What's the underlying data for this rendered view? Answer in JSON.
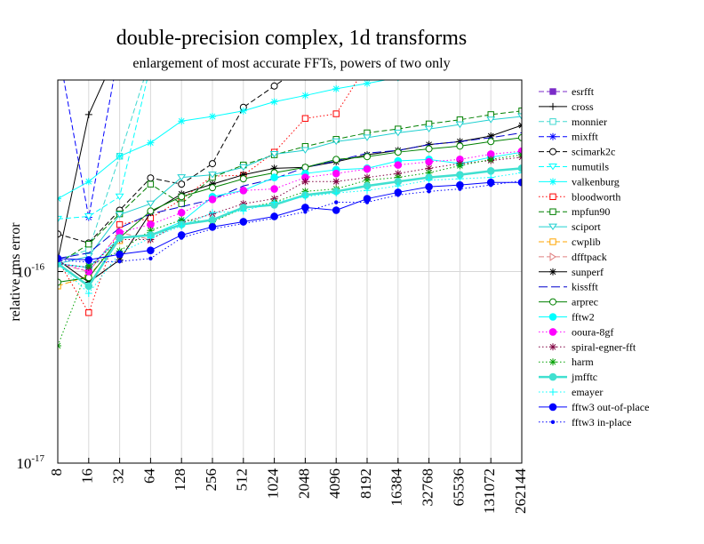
{
  "chart_data": {
    "type": "line",
    "title": "double-precision complex, 1d transforms",
    "subtitle": "enlargement of most accurate FFTs, powers of two only",
    "y_label": "relative rms error",
    "log_y": true,
    "grid": true,
    "categories": [
      "8",
      "16",
      "32",
      "64",
      "128",
      "256",
      "512",
      "1024",
      "2048",
      "4096",
      "8192",
      "16384",
      "32768",
      "65536",
      "131072",
      "262144"
    ],
    "ylim": [
      1e-17,
      1e-15
    ],
    "yticks": [
      {
        "value": 1e-17,
        "label": "10",
        "exp": "-17"
      },
      {
        "value": 1e-16,
        "label": "10",
        "exp": "-16"
      }
    ],
    "series": [
      {
        "name": "esrfft",
        "color": "#7b2bc8",
        "style": "dashed",
        "marker": "square-filled",
        "values": [
          null,
          null,
          null,
          null,
          null,
          null,
          null,
          null,
          null,
          null,
          null,
          null,
          null,
          null,
          null,
          null
        ]
      },
      {
        "name": "cross",
        "color": "#000000",
        "style": "solid",
        "marker": "plus",
        "values": [
          1.15e-16,
          6.6e-16,
          1.5e-15,
          null,
          null,
          null,
          null,
          null,
          null,
          null,
          null,
          null,
          null,
          null,
          null,
          null
        ]
      },
      {
        "name": "monnier",
        "color": "#40d8d0",
        "style": "dashed",
        "marker": "square",
        "values": [
          1.15e-16,
          1.3e-16,
          4e-16,
          1.3e-15,
          null,
          null,
          null,
          null,
          null,
          null,
          null,
          null,
          null,
          null,
          null,
          null
        ]
      },
      {
        "name": "mixfft",
        "color": "#0000ff",
        "style": "dashed",
        "marker": "star",
        "values": [
          1.5e-15,
          1.92e-16,
          1.5e-15,
          null,
          null,
          null,
          null,
          null,
          null,
          null,
          null,
          null,
          null,
          null,
          null,
          null
        ]
      },
      {
        "name": "scimark2c",
        "color": "#000000",
        "style": "dashed",
        "marker": "circle",
        "values": [
          1.57e-16,
          1.41e-16,
          2.09e-16,
          3.08e-16,
          2.86e-16,
          3.66e-16,
          7.2e-16,
          9.3e-16,
          1.2e-15,
          null,
          null,
          null,
          null,
          null,
          null,
          null
        ]
      },
      {
        "name": "numutils",
        "color": "#00ffff",
        "style": "dashed",
        "marker": "triangle-down",
        "values": [
          1.88e-16,
          1.94e-16,
          2.46e-16,
          1.2e-15,
          null,
          null,
          null,
          null,
          null,
          null,
          null,
          null,
          null,
          null,
          null,
          null
        ]
      },
      {
        "name": "valkenburg",
        "color": "#00ffff",
        "style": "solid",
        "marker": "star",
        "values": [
          2.4e-16,
          2.95e-16,
          4e-16,
          4.7e-16,
          6.1e-16,
          6.45e-16,
          6.9e-16,
          7.7e-16,
          8.3e-16,
          9e-16,
          9.6e-16,
          1.03e-15,
          1.1e-15,
          null,
          null,
          null
        ]
      },
      {
        "name": "bloodworth",
        "color": "#ff0000",
        "style": "dotted",
        "marker": "square",
        "values": [
          1.15e-16,
          6.1e-17,
          1.76e-16,
          1.9e-16,
          2.38e-16,
          3.15e-16,
          3.18e-16,
          4.2e-16,
          6.3e-16,
          6.66e-16,
          1.2e-15,
          null,
          null,
          null,
          null,
          null
        ]
      },
      {
        "name": "mpfun90",
        "color": "#008000",
        "style": "dashed",
        "marker": "square",
        "values": [
          1.1e-16,
          1.39e-16,
          2e-16,
          2.86e-16,
          2.26e-16,
          3.1e-16,
          3.6e-16,
          4.07e-16,
          4.5e-16,
          4.9e-16,
          5.3e-16,
          5.55e-16,
          5.9e-16,
          6.2e-16,
          6.6e-16,
          6.9e-16
        ]
      },
      {
        "name": "sciport",
        "color": "#20d0d0",
        "style": "solid",
        "marker": "triangle-down",
        "values": [
          1.1e-16,
          1.2e-16,
          1.98e-16,
          2.26e-16,
          3.1e-16,
          3.2e-16,
          3.5e-16,
          4.1e-16,
          4.3e-16,
          4.77e-16,
          5e-16,
          5.3e-16,
          5.55e-16,
          5.85e-16,
          6.2e-16,
          6.45e-16
        ]
      },
      {
        "name": "cwplib",
        "color": "#ffa500",
        "style": "dashed",
        "marker": "square",
        "values": [
          8.4e-17,
          9.5e-17,
          1.45e-16,
          null,
          null,
          null,
          null,
          null,
          null,
          null,
          null,
          null,
          null,
          null,
          null,
          null
        ]
      },
      {
        "name": "dfftpack",
        "color": "#e08080",
        "style": "dashed",
        "marker": "triangle-right",
        "values": [
          1.1e-16,
          1e-16,
          1.6e-16,
          1.47e-16,
          null,
          null,
          null,
          null,
          null,
          null,
          null,
          null,
          null,
          null,
          null,
          null
        ]
      },
      {
        "name": "sunperf",
        "color": "#000000",
        "style": "solid",
        "marker": "star",
        "values": [
          1.15e-16,
          8.8e-17,
          1.15e-16,
          2.03e-16,
          2.54e-16,
          2.86e-16,
          3.2e-16,
          3.46e-16,
          3.5e-16,
          3.74e-16,
          4.07e-16,
          4.29e-16,
          4.6e-16,
          4.77e-16,
          5.1e-16,
          5.8e-16
        ]
      },
      {
        "name": "kissfft",
        "color": "#0000cd",
        "style": "long-dashed",
        "marker": "none",
        "values": [
          1.17e-16,
          1.25e-16,
          1.69e-16,
          2e-16,
          2.18e-16,
          2.38e-16,
          2.8e-16,
          3.05e-16,
          3.5e-16,
          3.78e-16,
          4.15e-16,
          4.29e-16,
          4.6e-16,
          4.77e-16,
          5e-16,
          5.3e-16
        ]
      },
      {
        "name": "arprec",
        "color": "#008000",
        "style": "solid",
        "marker": "circle",
        "values": [
          8.8e-17,
          9.3e-17,
          1.5e-16,
          2.07e-16,
          2.46e-16,
          2.74e-16,
          3.05e-16,
          3.28e-16,
          3.5e-16,
          3.85e-16,
          3.98e-16,
          4.2e-16,
          4.37e-16,
          4.52e-16,
          4.77e-16,
          5e-16
        ]
      },
      {
        "name": "fftw2",
        "color": "#00ffff",
        "style": "solid",
        "marker": "circle-filled",
        "values": [
          1.1e-16,
          1.05e-16,
          1.5e-16,
          1.55e-16,
          1.82e-16,
          2.46e-16,
          2.65e-16,
          3.1e-16,
          3.25e-16,
          3.4e-16,
          3.46e-16,
          3.78e-16,
          3.85e-16,
          3.66e-16,
          3.95e-16,
          4.2e-16
        ]
      },
      {
        "name": "ooura-8gf",
        "color": "#ff00ff",
        "style": "dotted",
        "marker": "circle-filled",
        "values": [
          1.12e-16,
          1e-16,
          1.6e-16,
          1.76e-16,
          2.03e-16,
          2.38e-16,
          2.65e-16,
          2.7e-16,
          3.1e-16,
          3.25e-16,
          3.43e-16,
          3.6e-16,
          3.74e-16,
          3.85e-16,
          4.1e-16,
          4.25e-16
        ]
      },
      {
        "name": "spiral-egner-fft",
        "color": "#800040",
        "style": "dotted",
        "marker": "star",
        "values": [
          1.1e-16,
          1.05e-16,
          1.47e-16,
          1.47e-16,
          1.8e-16,
          2e-16,
          2.26e-16,
          2.4e-16,
          2.95e-16,
          2.95e-16,
          3.1e-16,
          3.25e-16,
          3.46e-16,
          3.66e-16,
          3.8e-16,
          3.95e-16
        ]
      },
      {
        "name": "harm",
        "color": "#00a000",
        "style": "dotted",
        "marker": "star",
        "values": [
          4.1e-17,
          1.07e-16,
          1.28e-16,
          1.64e-16,
          1.86e-16,
          1.82e-16,
          2.14e-16,
          2.3e-16,
          2.62e-16,
          2.7e-16,
          3e-16,
          3.1e-16,
          3.28e-16,
          3.57e-16,
          3.85e-16,
          4.07e-16
        ]
      },
      {
        "name": "jmfftc",
        "color": "#40e0d0",
        "style": "thick",
        "marker": "circle-filled",
        "values": [
          1.1e-16,
          8.4e-17,
          1.5e-16,
          1.55e-16,
          1.76e-16,
          1.86e-16,
          2.16e-16,
          2.23e-16,
          2.51e-16,
          2.62e-16,
          2.8e-16,
          2.95e-16,
          3.1e-16,
          3.2e-16,
          3.35e-16,
          3.46e-16
        ]
      },
      {
        "name": "emayer",
        "color": "#00ffff",
        "style": "dotted",
        "marker": "plus",
        "values": [
          1.1e-16,
          7.7e-17,
          1.25e-16,
          1.5e-16,
          1.73e-16,
          2.03e-16,
          2.07e-16,
          2.3e-16,
          2.46e-16,
          2.57e-16,
          2.65e-16,
          2.8e-16,
          3e-16,
          3.05e-16,
          3.1e-16,
          3.28e-16
        ]
      },
      {
        "name": "fftw3 out-of-place",
        "color": "#0000ff",
        "style": "solid",
        "marker": "circle-filled",
        "values": [
          1.17e-16,
          1.15e-16,
          1.23e-16,
          1.29e-16,
          1.55e-16,
          1.71e-16,
          1.82e-16,
          1.94e-16,
          2.16e-16,
          2.09e-16,
          2.4e-16,
          2.59e-16,
          2.77e-16,
          2.83e-16,
          2.92e-16,
          2.92e-16
        ]
      },
      {
        "name": "fftw3 in-place",
        "color": "#0000ff",
        "style": "dotted",
        "marker": "dot",
        "values": [
          1.15e-16,
          1.12e-16,
          1.13e-16,
          1.17e-16,
          1.5e-16,
          1.67e-16,
          1.78e-16,
          1.9e-16,
          2.05e-16,
          2.3e-16,
          2.3e-16,
          2.51e-16,
          2.62e-16,
          2.7e-16,
          2.83e-16,
          2.98e-16
        ]
      }
    ]
  }
}
